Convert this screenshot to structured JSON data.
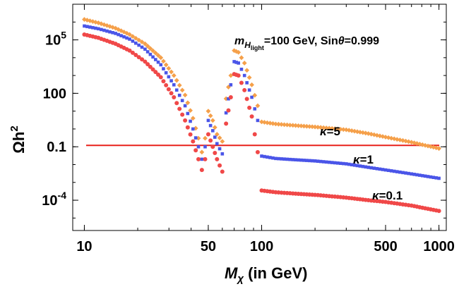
{
  "chart_data": {
    "type": "scatter",
    "title": "",
    "xlabel_main": "M",
    "xlabel_sub": "χ",
    "xlabel_rest": " (in GeV)",
    "ylabel_main": "Ωh",
    "ylabel_sup": "2",
    "x_scale": "log",
    "y_scale": "log",
    "xlim": [
      8.6,
      1100
    ],
    "ylim": [
      2e-06,
      10000000.0
    ],
    "grid": false,
    "x_ticks": [
      {
        "value": 10,
        "label": "10"
      },
      {
        "value": 50,
        "label": "50"
      },
      {
        "value": 100,
        "label": "100"
      },
      {
        "value": 500,
        "label": "500"
      },
      {
        "value": 1000,
        "label": "1000"
      }
    ],
    "y_ticks": [
      {
        "value": 0.0001,
        "label_base": "10",
        "label_exp": "-4"
      },
      {
        "value": 0.1,
        "label_base": "0.1",
        "label_exp": ""
      },
      {
        "value": 100,
        "label_base": "100",
        "label_exp": ""
      },
      {
        "value": 100000,
        "label_base": "10",
        "label_exp": "5"
      }
    ],
    "annotation": {
      "m_prefix": "m",
      "m_sub": "H",
      "m_subsub": "light",
      "rest": "=100  GeV, Sin",
      "theta": "θ",
      "tail": "=0.999"
    },
    "reference_line": {
      "y": 0.12,
      "color": "#e8201a"
    },
    "series": [
      {
        "name": "κ=5",
        "label_kappa": "κ",
        "label_value": "=5",
        "color": "#f5a04a",
        "marker": "diamond",
        "points": [
          [
            10,
            1400000.0
          ],
          [
            12,
            900000.0
          ],
          [
            15,
            450000.0
          ],
          [
            18,
            200000.0
          ],
          [
            22,
            60000.0
          ],
          [
            27,
            10000.0
          ],
          [
            32,
            1000.0
          ],
          [
            37,
            80
          ],
          [
            41,
            4
          ],
          [
            44,
            0.3
          ],
          [
            46,
            0.05
          ],
          [
            48,
            0.3
          ],
          [
            50,
            10
          ],
          [
            53,
            3
          ],
          [
            56,
            0.5
          ],
          [
            60,
            0.2
          ],
          [
            63,
            50
          ],
          [
            67,
            1000.0
          ],
          [
            70,
            25000.0
          ],
          [
            74,
            20000.0
          ],
          [
            80,
            5000.0
          ],
          [
            88,
            300
          ],
          [
            95,
            20
          ],
          [
            100,
            2.5
          ],
          [
            120,
            1.9
          ],
          [
            150,
            1.6
          ],
          [
            200,
            1.3
          ],
          [
            300,
            0.9
          ],
          [
            400,
            0.55
          ],
          [
            500,
            0.35
          ],
          [
            700,
            0.18
          ],
          [
            1000,
            0.08
          ]
        ]
      },
      {
        "name": "κ=1",
        "label_kappa": "κ",
        "label_value": "=1",
        "color": "#4a55e8",
        "marker": "square",
        "points": [
          [
            10,
            600000.0
          ],
          [
            12,
            420000.0
          ],
          [
            15,
            230000.0
          ],
          [
            18,
            110000.0
          ],
          [
            22,
            30000.0
          ],
          [
            27,
            4000.0
          ],
          [
            32,
            300
          ],
          [
            37,
            20
          ],
          [
            41,
            1
          ],
          [
            44,
            0.1
          ],
          [
            46,
            0.02
          ],
          [
            48,
            0.1
          ],
          [
            50,
            3
          ],
          [
            53,
            0.8
          ],
          [
            56,
            0.15
          ],
          [
            60,
            0.04
          ],
          [
            63,
            8
          ],
          [
            67,
            300
          ],
          [
            70,
            6000.0
          ],
          [
            74,
            5000.0
          ],
          [
            80,
            1000.0
          ],
          [
            88,
            60
          ],
          [
            95,
            3
          ],
          [
            100,
            0.03
          ],
          [
            120,
            0.022
          ],
          [
            150,
            0.019
          ],
          [
            200,
            0.016
          ],
          [
            300,
            0.011
          ],
          [
            400,
            0.007
          ],
          [
            500,
            0.005
          ],
          [
            700,
            0.003
          ],
          [
            1000,
            0.0017
          ]
        ]
      },
      {
        "name": "κ=0.1",
        "label_kappa": "κ",
        "label_value": "=0.1",
        "color": "#f04848",
        "marker": "circle",
        "points": [
          [
            10,
            200000.0
          ],
          [
            12,
            130000.0
          ],
          [
            15,
            60000.0
          ],
          [
            18,
            25000.0
          ],
          [
            22,
            6000.0
          ],
          [
            27,
            800
          ],
          [
            32,
            60
          ],
          [
            37,
            3
          ],
          [
            41,
            0.2
          ],
          [
            44,
            0.02
          ],
          [
            46,
            0.005
          ],
          [
            48,
            0.02
          ],
          [
            50,
            0.5
          ],
          [
            53,
            0.1
          ],
          [
            56,
            0.02
          ],
          [
            60,
            0.004
          ],
          [
            63,
            2
          ],
          [
            67,
            60
          ],
          [
            70,
            1200.0
          ],
          [
            74,
            1000.0
          ],
          [
            80,
            150
          ],
          [
            88,
            5
          ],
          [
            95,
            0.05
          ],
          [
            100,
            0.00035
          ],
          [
            120,
            0.00028
          ],
          [
            150,
            0.00024
          ],
          [
            200,
            0.0002
          ],
          [
            300,
            0.00014
          ],
          [
            400,
            0.0001
          ],
          [
            500,
            8e-05
          ],
          [
            700,
            5e-05
          ],
          [
            1000,
            2.5e-05
          ]
        ]
      }
    ]
  }
}
